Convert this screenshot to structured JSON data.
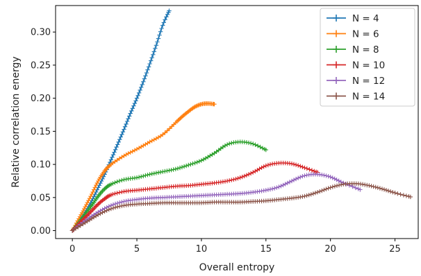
{
  "chart_data": {
    "type": "line",
    "title": "",
    "xlabel": "Overall entropy",
    "ylabel": "Relative correlation energy",
    "xlim": [
      -1.3,
      26.8
    ],
    "ylim": [
      -0.012,
      0.34
    ],
    "xticks": [
      0,
      5,
      10,
      15,
      20,
      25
    ],
    "yticks": [
      0.0,
      0.05,
      0.1,
      0.15,
      0.2,
      0.25,
      0.3
    ],
    "xtick_labels": [
      "0",
      "5",
      "10",
      "15",
      "20",
      "25"
    ],
    "ytick_labels": [
      "0.00",
      "0.05",
      "0.10",
      "0.15",
      "0.20",
      "0.25",
      "0.30"
    ],
    "grid": false,
    "legend": "top-right",
    "marker": "+",
    "series": [
      {
        "name": "N = 4",
        "color": "#1f77b4",
        "x": [
          0,
          0.5,
          1,
          1.5,
          2,
          2.5,
          3,
          3.5,
          4,
          4.5,
          5,
          5.5,
          6,
          6.5,
          7,
          7.5
        ],
        "y": [
          0.0,
          0.012,
          0.028,
          0.045,
          0.065,
          0.085,
          0.107,
          0.13,
          0.153,
          0.177,
          0.2,
          0.225,
          0.252,
          0.28,
          0.31,
          0.332
        ]
      },
      {
        "name": "N = 6",
        "color": "#ff7f0e",
        "x": [
          0,
          0.5,
          1,
          1.5,
          2,
          2.5,
          3,
          4,
          5,
          6,
          7,
          8,
          8.5,
          9,
          9.5,
          10,
          10.5,
          11
        ],
        "y": [
          0.0,
          0.018,
          0.036,
          0.055,
          0.075,
          0.09,
          0.1,
          0.113,
          0.123,
          0.134,
          0.145,
          0.163,
          0.172,
          0.18,
          0.187,
          0.191,
          0.192,
          0.191
        ]
      },
      {
        "name": "N = 8",
        "color": "#2ca02c",
        "x": [
          0,
          0.5,
          1,
          1.5,
          2,
          2.5,
          3,
          4,
          5,
          6,
          7,
          8,
          9,
          10,
          11,
          12,
          13,
          14,
          15
        ],
        "y": [
          0.0,
          0.012,
          0.025,
          0.038,
          0.052,
          0.063,
          0.07,
          0.077,
          0.08,
          0.085,
          0.089,
          0.093,
          0.099,
          0.106,
          0.117,
          0.13,
          0.134,
          0.131,
          0.122
        ]
      },
      {
        "name": "N = 10",
        "color": "#d62728",
        "x": [
          0,
          0.5,
          1,
          1.5,
          2,
          2.5,
          3,
          4,
          5,
          6,
          7,
          8,
          9,
          10,
          11,
          12,
          13,
          14,
          15,
          16,
          17,
          18,
          19
        ],
        "y": [
          0.0,
          0.01,
          0.02,
          0.03,
          0.04,
          0.048,
          0.054,
          0.059,
          0.061,
          0.063,
          0.065,
          0.067,
          0.068,
          0.07,
          0.072,
          0.075,
          0.08,
          0.088,
          0.098,
          0.102,
          0.101,
          0.095,
          0.088
        ]
      },
      {
        "name": "N = 12",
        "color": "#9467bd",
        "x": [
          0,
          1,
          2,
          3,
          4,
          5,
          6,
          7,
          8,
          9,
          10,
          11,
          12,
          13,
          14,
          15,
          16,
          17,
          18,
          19,
          20,
          21,
          22.3
        ],
        "y": [
          0.0,
          0.015,
          0.028,
          0.038,
          0.044,
          0.047,
          0.049,
          0.05,
          0.051,
          0.052,
          0.053,
          0.054,
          0.055,
          0.056,
          0.058,
          0.061,
          0.066,
          0.075,
          0.083,
          0.085,
          0.081,
          0.072,
          0.062
        ]
      },
      {
        "name": "N = 14",
        "color": "#8c564b",
        "x": [
          0,
          1,
          2,
          3,
          4,
          5,
          6,
          7,
          8,
          9,
          10,
          11,
          12,
          13,
          14,
          15,
          16,
          17,
          18,
          19,
          20,
          21,
          22,
          23,
          24,
          25,
          26.2
        ],
        "y": [
          0.0,
          0.012,
          0.024,
          0.033,
          0.038,
          0.04,
          0.041,
          0.042,
          0.042,
          0.042,
          0.042,
          0.043,
          0.043,
          0.043,
          0.044,
          0.045,
          0.047,
          0.049,
          0.052,
          0.058,
          0.065,
          0.07,
          0.071,
          0.068,
          0.063,
          0.057,
          0.051
        ]
      }
    ]
  }
}
